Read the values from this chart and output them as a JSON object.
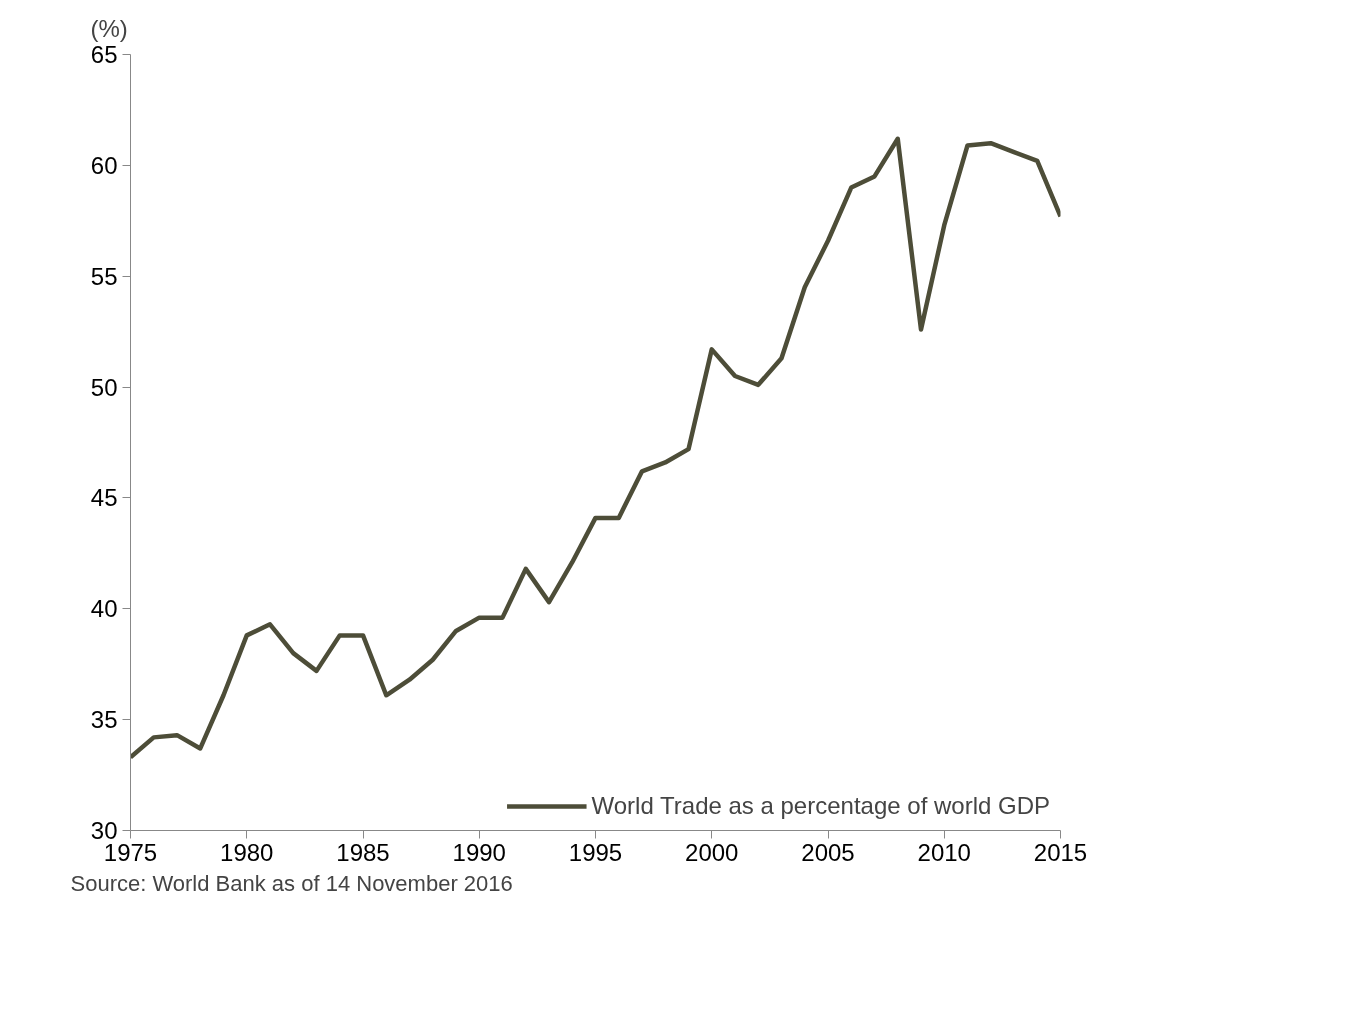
{
  "chart_data": {
    "type": "line",
    "ylabel": "(%)",
    "x": [
      1975,
      1976,
      1977,
      1978,
      1979,
      1980,
      1981,
      1982,
      1983,
      1984,
      1985,
      1986,
      1987,
      1988,
      1989,
      1990,
      1991,
      1992,
      1993,
      1994,
      1995,
      1996,
      1997,
      1998,
      1999,
      2000,
      2001,
      2002,
      2003,
      2004,
      2005,
      2006,
      2007,
      2008,
      2009,
      2010,
      2011,
      2012,
      2013,
      2014,
      2015
    ],
    "series": [
      {
        "name": "World Trade as a percentage of world GDP",
        "color": "#4d4d38",
        "values": [
          33.3,
          34.2,
          34.3,
          33.7,
          36.1,
          38.8,
          39.3,
          38.0,
          37.2,
          38.8,
          38.8,
          36.1,
          36.8,
          37.7,
          39.0,
          39.6,
          39.6,
          41.8,
          40.3,
          42.1,
          44.1,
          44.1,
          46.2,
          46.6,
          47.2,
          51.7,
          50.5,
          50.1,
          51.3,
          54.5,
          56.6,
          59.0,
          59.5,
          61.2,
          52.6,
          57.3,
          60.9,
          61.0,
          60.6,
          60.2,
          57.7
        ]
      }
    ],
    "xlim": [
      1975,
      2015
    ],
    "xticks": [
      1975,
      1980,
      1985,
      1990,
      1995,
      2000,
      2005,
      2010,
      2015
    ],
    "ylim": [
      30,
      65
    ],
    "yticks": [
      30,
      35,
      40,
      45,
      50,
      55,
      60,
      65
    ],
    "grid": false,
    "legend": "bottom right",
    "marker": "none",
    "line_style": "solid",
    "annotations": [
      "Source: World Bank as of 14 November 2016"
    ]
  }
}
